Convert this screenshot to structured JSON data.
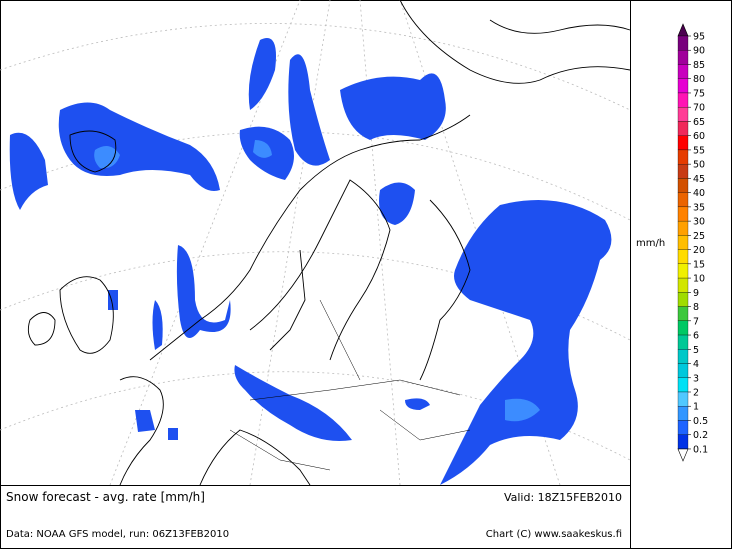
{
  "header": {
    "title": "Snow forecast - avg. rate [mm/h]",
    "valid": "Valid: 18Z15FEB2010"
  },
  "footer": {
    "source": "Data: NOAA GFS model, run: 06Z13FEB2010",
    "credit": "Chart (C) www.saakeskus.fi"
  },
  "legend": {
    "unit": "mm/h",
    "labels": [
      "95",
      "90",
      "85",
      "80",
      "75",
      "70",
      "65",
      "60",
      "55",
      "50",
      "45",
      "40",
      "35",
      "30",
      "25",
      "20",
      "15",
      "10",
      "9",
      "8",
      "7",
      "6",
      "5",
      "4",
      "3",
      "2",
      "1",
      "0.5",
      "0.2",
      "0.1"
    ],
    "colors": [
      "#4b0050",
      "#78007d",
      "#a0009b",
      "#c800be",
      "#e600d2",
      "#ff14b4",
      "#ff3c96",
      "#f0285a",
      "#ff0000",
      "#e63c00",
      "#c83c14",
      "#d25000",
      "#eb6400",
      "#ff8200",
      "#ffa000",
      "#ffbe00",
      "#ffdc00",
      "#f0f000",
      "#d2e600",
      "#a0dc00",
      "#3cc83c",
      "#00c864",
      "#00c896",
      "#00c8c8",
      "#00c8dc",
      "#00e1f5",
      "#50c8ff",
      "#3296ff",
      "#1e64ff",
      "#0032e6"
    ]
  }
}
